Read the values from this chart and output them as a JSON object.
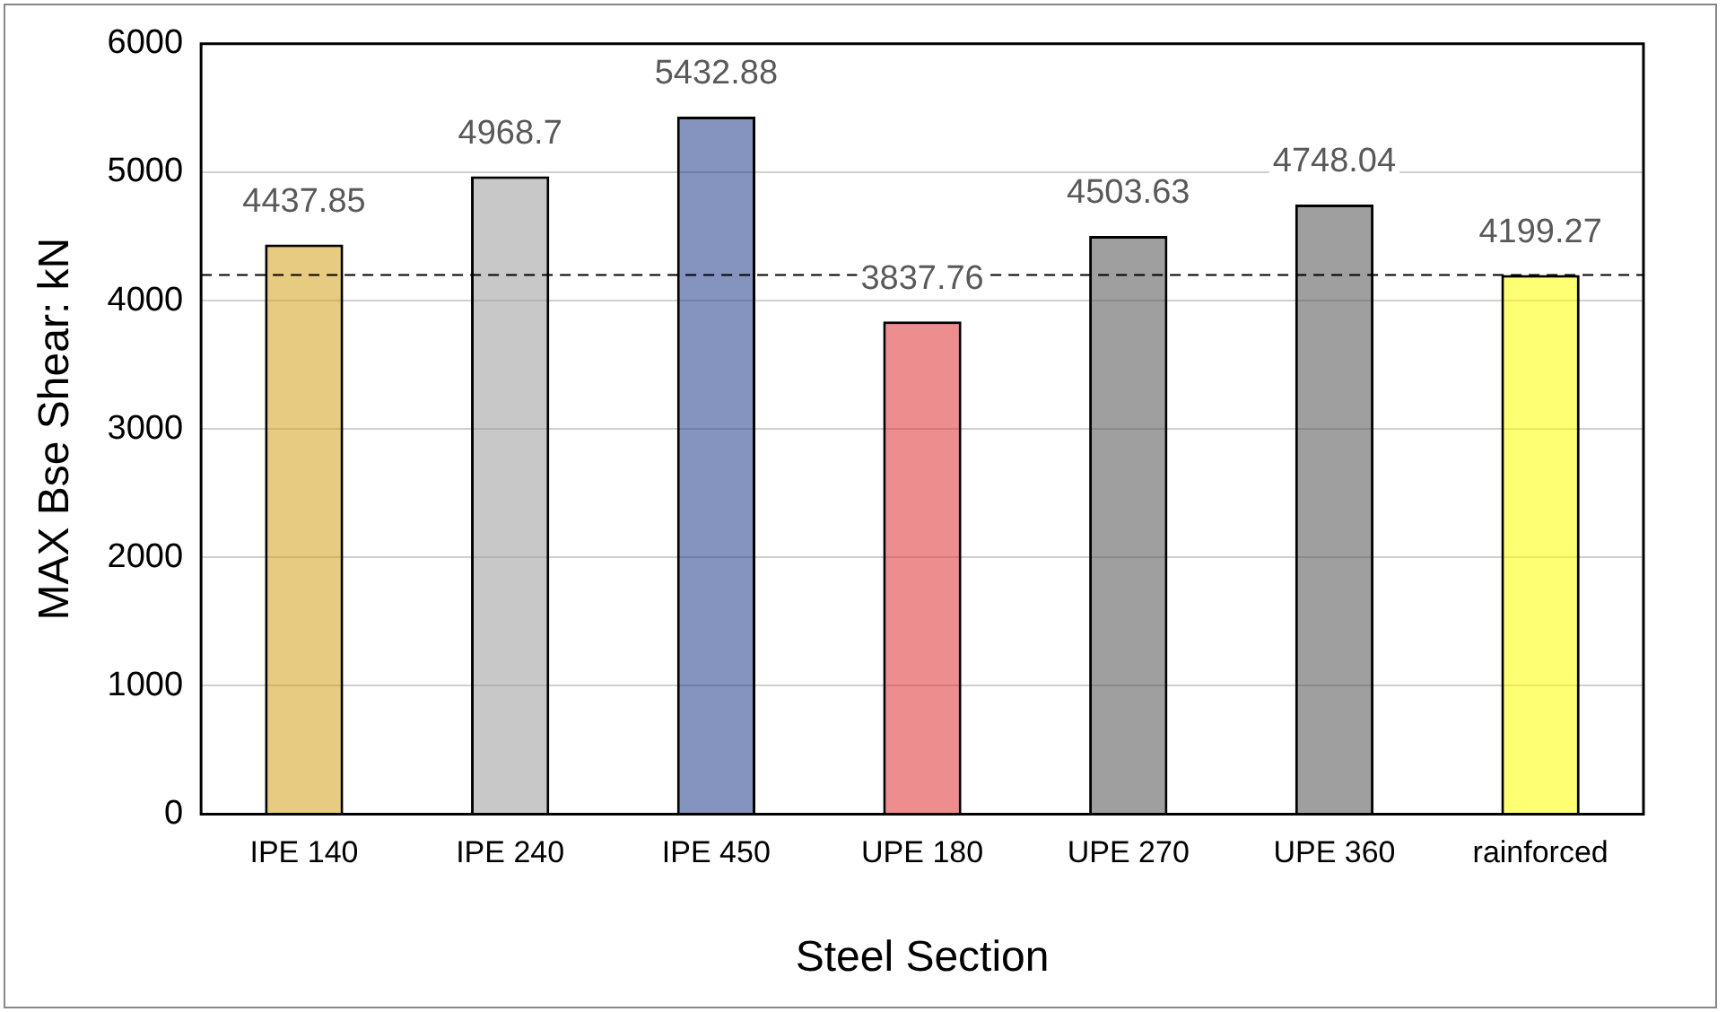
{
  "chart_data": {
    "type": "bar",
    "xlabel": "Steel Section",
    "ylabel": "MAX Bse Shear: kN",
    "categories": [
      "IPE 140",
      "IPE 240",
      "IPE 450",
      "UPE 180",
      "UPE 270",
      "UPE 360",
      "rainforced"
    ],
    "values": [
      4437.85,
      4968.7,
      5432.88,
      3837.76,
      4503.63,
      4748.04,
      4199.27
    ],
    "colors": [
      "#d4a017",
      "#9a9a9a",
      "#1f3c88",
      "#e03030",
      "#505050",
      "#505050",
      "#ffff00"
    ],
    "ylim": [
      0,
      6000
    ],
    "yticks": [
      0,
      1000,
      2000,
      3000,
      4000,
      5000,
      6000
    ],
    "grid": "y",
    "legend": false,
    "data_labels": true,
    "ref_lines": [
      {
        "axis": "y",
        "value": 4199.27,
        "line_style": "dashed",
        "color": "#000000"
      }
    ]
  }
}
